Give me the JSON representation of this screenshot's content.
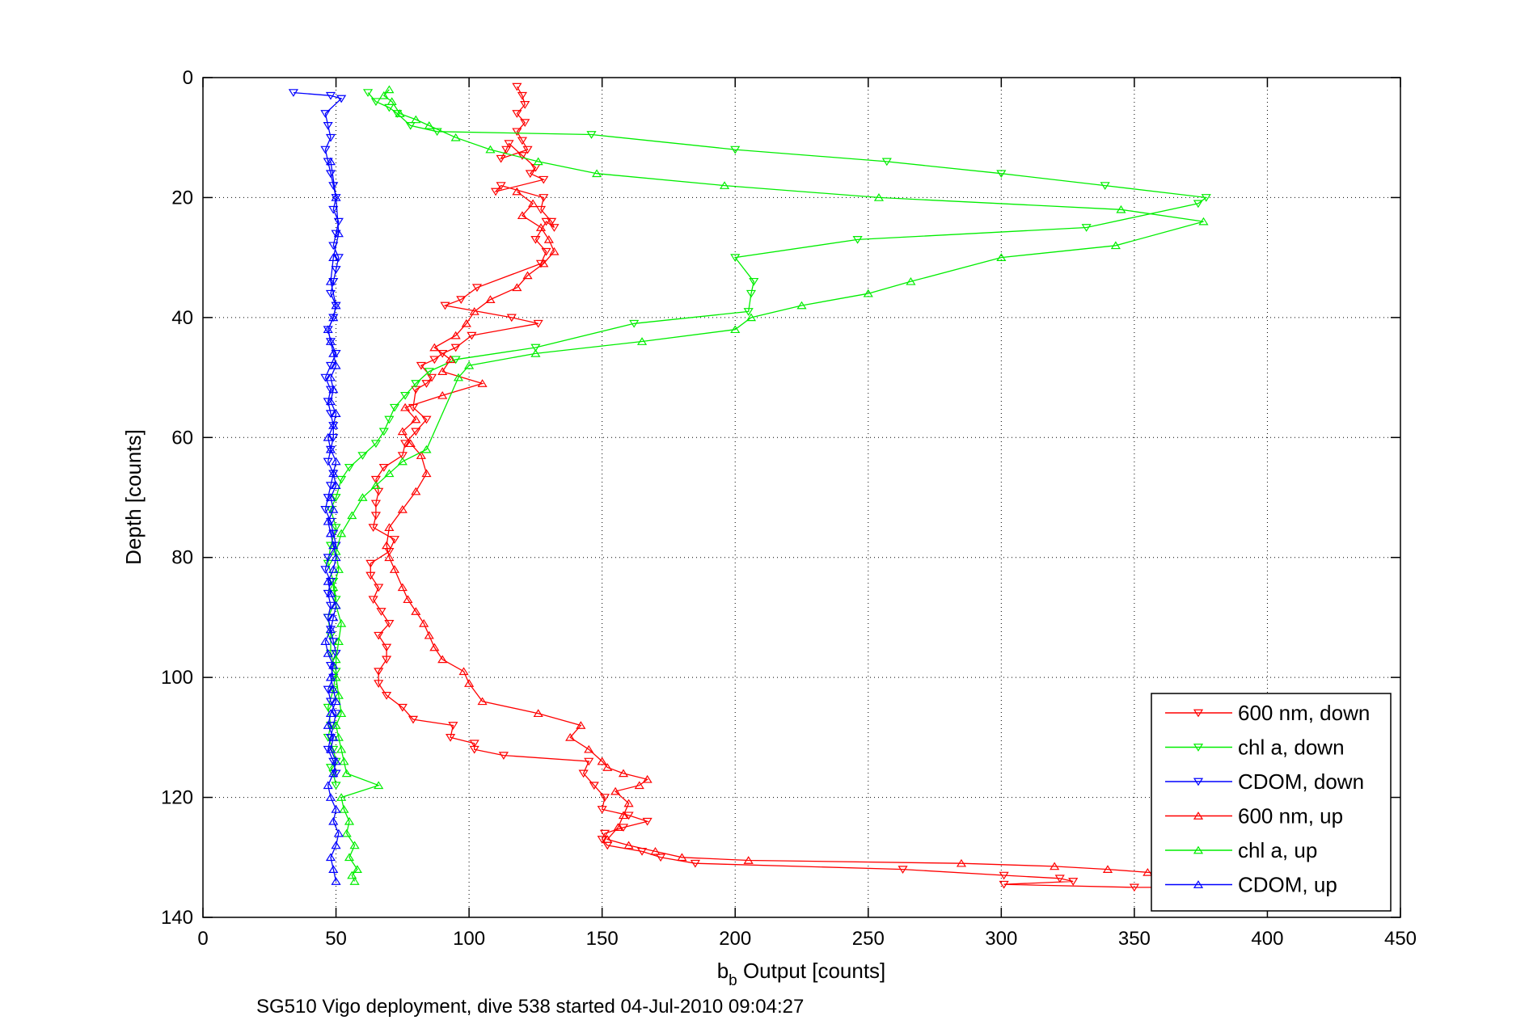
{
  "chart_data": {
    "type": "line",
    "xlabel": "b",
    "xlabel_sub": "b",
    "xlabel_suffix": " Output [counts]",
    "ylabel": "Depth [counts]",
    "subtitle": "SG510 Vigo deployment, dive 538 started 04-Jul-2010 09:04:27",
    "xlim": [
      0,
      450
    ],
    "ylim": [
      0,
      140
    ],
    "y_reversed": true,
    "grid": true,
    "xticks": [
      "0",
      "50",
      "100",
      "150",
      "200",
      "250",
      "300",
      "350",
      "400",
      "450"
    ],
    "yticks": [
      "0",
      "20",
      "40",
      "60",
      "80",
      "100",
      "120",
      "140"
    ],
    "legend_position": "bottom-right",
    "series": [
      {
        "name": "600 nm, down",
        "color": "#ff0000",
        "marker": "triangle-down",
        "x": [
          118,
          120,
          121,
          118,
          121,
          118,
          120,
          122,
          112,
          114,
          115,
          120,
          125,
          123,
          128,
          110,
          112,
          128,
          127,
          131,
          132,
          129,
          125,
          129,
          127,
          103,
          97,
          91,
          116,
          126,
          101,
          95,
          90,
          87,
          82,
          86,
          84,
          80,
          79,
          84,
          80,
          76,
          75,
          68,
          65,
          66,
          65,
          65,
          64,
          72,
          70,
          63,
          63,
          66,
          64,
          67,
          70,
          66,
          69,
          69,
          66,
          66,
          69,
          75,
          79,
          94,
          93,
          102,
          102,
          113,
          145,
          143,
          147,
          151,
          150,
          160,
          167,
          158,
          151,
          150,
          152,
          165,
          172,
          185,
          263,
          301,
          322,
          327,
          301,
          350,
          408
        ],
        "y": [
          1.5,
          3,
          4.5,
          6,
          7.5,
          9,
          10.5,
          12,
          13.5,
          12,
          11,
          13,
          15,
          16,
          17,
          19,
          18,
          20,
          22,
          24,
          25,
          24,
          27,
          29,
          31,
          35,
          37,
          38,
          40,
          41,
          43,
          45,
          46,
          47,
          48,
          50,
          51,
          52,
          55,
          57,
          59,
          61,
          63,
          65,
          67,
          69,
          71,
          73,
          75,
          77,
          79,
          81,
          83,
          85,
          87,
          89,
          91,
          93,
          95,
          97,
          99,
          101,
          103,
          105,
          107,
          108,
          110,
          111,
          112,
          113,
          114,
          116,
          118,
          120,
          122,
          123,
          124,
          125,
          126,
          127,
          128,
          129,
          130,
          131,
          132,
          133,
          133.5,
          134,
          134.5,
          135,
          135
        ]
      },
      {
        "name": "chl a, down",
        "color": "#00ee00",
        "marker": "triangle-down",
        "x": [
          62,
          65,
          70,
          73,
          78,
          88,
          146,
          200,
          257,
          300,
          339,
          377,
          374,
          332,
          246,
          200,
          207,
          206,
          205,
          162,
          125,
          95,
          85,
          80,
          76,
          72,
          70,
          68,
          65,
          60,
          55,
          52,
          50,
          48,
          50,
          48,
          47,
          49,
          50,
          47,
          48,
          48,
          50,
          49,
          47,
          48,
          47,
          49,
          50,
          48,
          49,
          50
        ],
        "y": [
          2.5,
          4,
          5,
          6,
          8,
          9,
          9.5,
          12,
          14,
          16,
          18,
          20,
          21,
          25,
          27,
          30,
          34,
          36,
          39,
          41,
          45,
          47,
          49,
          51,
          53,
          55,
          57,
          59,
          61,
          63,
          65,
          67,
          70,
          72,
          75,
          78,
          81,
          84,
          87,
          90,
          93,
          96,
          99,
          102,
          105,
          108,
          110,
          112,
          114,
          115,
          116,
          118
        ]
      },
      {
        "name": "CDOM, down",
        "color": "#0000ff",
        "marker": "triangle-down",
        "x": [
          34,
          48,
          52,
          46,
          47,
          48,
          46,
          47,
          48,
          49,
          50,
          49,
          51,
          50,
          49,
          51,
          50,
          49,
          48,
          50,
          49,
          47,
          48,
          50,
          48,
          46,
          48,
          47,
          48,
          49,
          49,
          48,
          47,
          49,
          48,
          47,
          46,
          48,
          49,
          50,
          47,
          46,
          48,
          47,
          48,
          47,
          48,
          49,
          50,
          48,
          49,
          47,
          48,
          50,
          49,
          48,
          47,
          49,
          50
        ],
        "y": [
          2.5,
          3,
          3.5,
          6,
          8,
          10,
          12,
          14,
          16,
          18,
          20,
          22,
          24,
          26,
          28,
          30,
          32,
          34,
          36,
          38,
          40,
          42,
          44,
          46,
          48,
          50,
          52,
          54,
          56,
          58,
          60,
          62,
          64,
          66,
          68,
          70,
          72,
          74,
          76,
          78,
          80,
          82,
          84,
          86,
          88,
          90,
          92,
          94,
          96,
          98,
          100,
          102,
          104,
          106,
          108,
          110,
          112,
          114,
          116
        ]
      },
      {
        "name": "600 nm, up",
        "color": "#ff0000",
        "marker": "triangle-up",
        "x": [
          408,
          355,
          340,
          320,
          285,
          205,
          180,
          170,
          160,
          152,
          156,
          158,
          160,
          155,
          164,
          167,
          158,
          152,
          150,
          145,
          138,
          142,
          126,
          105,
          100,
          98,
          90,
          87,
          85,
          83,
          80,
          77,
          75,
          72,
          70,
          69,
          70,
          75,
          80,
          84,
          82,
          78,
          75,
          80,
          76,
          90,
          105,
          90,
          93,
          87,
          95,
          99,
          102,
          108,
          118,
          122,
          128,
          132,
          130,
          127,
          120,
          124,
          118
        ],
        "y": [
          133,
          132.5,
          132,
          131.5,
          131,
          130.5,
          130,
          129,
          128,
          127,
          125,
          123,
          121,
          119,
          118,
          117,
          116,
          115,
          114,
          112,
          110,
          108,
          106,
          104,
          101,
          99,
          97,
          95,
          93,
          91,
          89,
          87,
          85,
          82,
          80,
          78,
          75,
          72,
          69,
          66,
          63,
          61,
          59,
          57,
          55,
          53,
          51,
          49,
          47,
          45,
          43,
          41,
          39,
          37,
          35,
          33,
          31,
          29,
          27,
          25,
          23,
          21,
          19
        ]
      },
      {
        "name": "chl a, up",
        "color": "#00ee00",
        "marker": "triangle-up",
        "x": [
          57,
          56,
          58,
          55,
          57,
          54,
          55,
          53,
          52,
          66,
          54,
          53,
          52,
          51,
          50,
          52,
          51,
          50,
          50,
          51,
          52,
          50,
          49,
          51,
          50,
          52,
          56,
          60,
          65,
          70,
          75,
          84,
          96,
          100,
          125,
          165,
          200,
          206,
          225,
          250,
          266,
          300,
          343,
          376,
          345,
          254,
          196,
          148,
          126,
          108,
          95,
          85,
          80,
          74,
          71,
          68,
          70
        ],
        "y": [
          134,
          133,
          132,
          130,
          128,
          126,
          124,
          122,
          120,
          118,
          116,
          114,
          112,
          110,
          108,
          106,
          103,
          100,
          97,
          94,
          91,
          88,
          85,
          82,
          79,
          76,
          73,
          70,
          68,
          66,
          64,
          62,
          50,
          48,
          46,
          44,
          42,
          40,
          38,
          36,
          34,
          30,
          28,
          24,
          22,
          20,
          18,
          16,
          14,
          12,
          10,
          8,
          7,
          6,
          4,
          3,
          2
        ]
      },
      {
        "name": "CDOM, up",
        "color": "#0000ff",
        "marker": "triangle-up",
        "x": [
          50,
          49,
          48,
          50,
          51,
          49,
          50,
          48,
          47,
          49,
          50,
          48,
          49,
          47,
          48,
          50,
          49,
          48,
          49,
          47,
          46,
          48,
          49,
          50,
          48,
          47,
          49,
          50,
          49,
          48,
          47,
          49,
          48,
          50,
          49,
          50,
          48,
          47,
          49,
          50,
          48,
          49,
          48,
          50,
          49,
          48,
          47,
          49,
          50,
          48,
          49,
          51,
          50,
          48
        ],
        "y": [
          134,
          132,
          130,
          128,
          126,
          124,
          122,
          120,
          118,
          116,
          114,
          112,
          110,
          108,
          106,
          104,
          102,
          100,
          98,
          96,
          94,
          92,
          90,
          88,
          86,
          84,
          82,
          80,
          78,
          76,
          74,
          72,
          70,
          68,
          66,
          64,
          62,
          60,
          58,
          56,
          54,
          52,
          50,
          48,
          46,
          44,
          42,
          40,
          38,
          34,
          30,
          26,
          20,
          14
        ]
      }
    ]
  }
}
